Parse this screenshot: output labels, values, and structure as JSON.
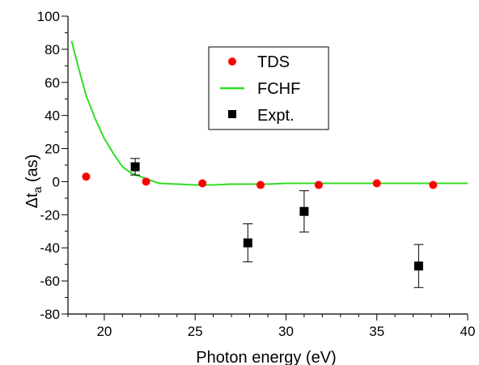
{
  "chart_data": {
    "type": "scatter",
    "xlabel": "Photon energy (eV)",
    "ylabel": {
      "main": "Δt",
      "sub": "a",
      "rest": " (as)"
    },
    "xlim": [
      18,
      40
    ],
    "ylim": [
      -80,
      100
    ],
    "xticks": [
      20,
      25,
      30,
      35,
      40
    ],
    "yticks": [
      -80,
      -60,
      -40,
      -20,
      0,
      20,
      40,
      60,
      80,
      100
    ],
    "grid": false,
    "legend_position": "top-center",
    "series": [
      {
        "name": "TDS",
        "kind": "points",
        "marker": "circle",
        "color": "#ff0000",
        "x": [
          19.0,
          22.3,
          25.4,
          28.6,
          31.8,
          35.0,
          38.1
        ],
        "y": [
          3,
          0,
          -1,
          -2,
          -2,
          -1,
          -2
        ]
      },
      {
        "name": "FCHF",
        "kind": "line",
        "color": "#33dd22",
        "x": [
          18.2,
          18.6,
          19.0,
          19.5,
          20.0,
          20.5,
          21.0,
          21.5,
          22.0,
          22.5,
          23.0,
          24.0,
          25.0,
          26.0,
          27.0,
          28.0,
          29.0,
          30.0,
          31.0,
          32.0,
          33.0,
          34.0,
          35.0,
          36.0,
          37.0,
          38.0,
          39.0,
          40.0
        ],
        "y": [
          85,
          68,
          52,
          38,
          26,
          17,
          9,
          5,
          3,
          1,
          -1,
          -1.5,
          -2,
          -2,
          -1.5,
          -1.5,
          -1.5,
          -1,
          -1,
          -1,
          -1,
          -1,
          -1,
          -1,
          -1,
          -1,
          -1,
          -1
        ]
      },
      {
        "name": "Expt.",
        "kind": "points_with_errorbars",
        "marker": "square",
        "color": "#000000",
        "x": [
          21.7,
          27.9,
          31.0,
          37.3
        ],
        "y": [
          9,
          -37,
          -18,
          -51
        ],
        "yerr": [
          5,
          11.5,
          12.5,
          13
        ]
      }
    ]
  }
}
